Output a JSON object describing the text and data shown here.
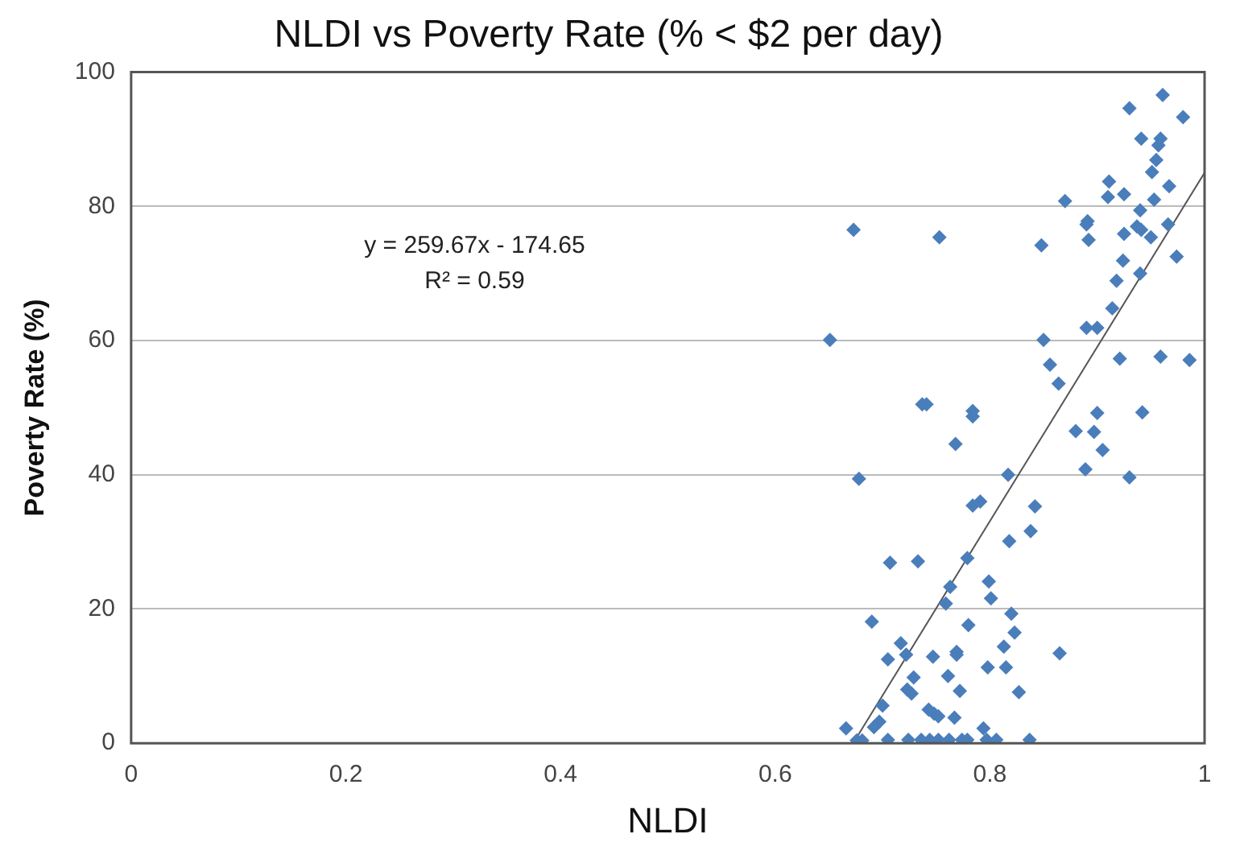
{
  "chart_data": {
    "type": "scatter",
    "title": "NLDI vs Poverty Rate (% < $2 per day)",
    "xlabel": "NLDI",
    "ylabel": "Poverty Rate (%)",
    "annotations": [
      "y = 259.67x - 174.65",
      "R² = 0.59"
    ],
    "xlim": [
      0,
      1
    ],
    "xticks": [
      0,
      0.2,
      0.4,
      0.6,
      0.8,
      1
    ],
    "ylim": [
      0,
      100
    ],
    "yticks": [
      0,
      20,
      40,
      60,
      80,
      100
    ],
    "grid": "y",
    "legend": false,
    "marker": "diamond",
    "series": [
      {
        "color": "#4a7ebb",
        "x": [
          0.961,
          0.93,
          0.98,
          0.941,
          0.959,
          0.957,
          0.955,
          0.951,
          0.911,
          0.967,
          0.91,
          0.925,
          0.953,
          0.87,
          0.94,
          0.891,
          0.89,
          0.673,
          0.753,
          0.937,
          0.941,
          0.966,
          0.925,
          0.95,
          0.892,
          0.848,
          0.974,
          0.924,
          0.918,
          0.94,
          0.914,
          0.89,
          0.9,
          0.651,
          0.85,
          0.856,
          0.921,
          0.959,
          0.986,
          0.864,
          0.737,
          0.741,
          0.784,
          0.784,
          0.9,
          0.942,
          0.768,
          0.88,
          0.897,
          0.905,
          0.889,
          0.93,
          0.678,
          0.817,
          0.784,
          0.791,
          0.842,
          0.838,
          0.818,
          0.707,
          0.733,
          0.779,
          0.799,
          0.763,
          0.801,
          0.759,
          0.82,
          0.69,
          0.78,
          0.823,
          0.717,
          0.813,
          0.722,
          0.705,
          0.747,
          0.769,
          0.769,
          0.865,
          0.798,
          0.815,
          0.729,
          0.761,
          0.723,
          0.727,
          0.772,
          0.827,
          0.7,
          0.743,
          0.748,
          0.752,
          0.697,
          0.692,
          0.767,
          0.666,
          0.794,
          0.676,
          0.681,
          0.705,
          0.724,
          0.736,
          0.744,
          0.752,
          0.762,
          0.774,
          0.779,
          0.797,
          0.806,
          0.837
        ],
        "values": [
          96.6,
          94.6,
          93.3,
          90.1,
          90.1,
          89.1,
          86.9,
          85.1,
          83.7,
          83,
          81.4,
          81.8,
          81,
          80.8,
          79.4,
          77.8,
          77.3,
          76.5,
          75.4,
          77,
          76.5,
          77.3,
          75.9,
          75.4,
          75,
          74.2,
          72.5,
          71.9,
          68.9,
          70,
          64.8,
          61.9,
          61.9,
          60.1,
          60.1,
          56.4,
          57.3,
          57.6,
          57.1,
          53.6,
          50.5,
          50.5,
          49.5,
          48.7,
          49.2,
          49.3,
          44.6,
          46.5,
          46.4,
          43.7,
          40.8,
          39.6,
          39.4,
          40,
          35.4,
          36,
          35.3,
          31.6,
          30.1,
          26.9,
          27.1,
          27.6,
          24.1,
          23.3,
          21.6,
          20.8,
          19.3,
          18.1,
          17.6,
          16.5,
          14.9,
          14.4,
          13.2,
          12.5,
          12.9,
          13.6,
          13.2,
          13.4,
          11.3,
          11.3,
          9.8,
          10,
          8,
          7.4,
          7.8,
          7.6,
          5.6,
          5,
          4.4,
          4,
          3.2,
          2.4,
          3.8,
          2.2,
          2.2,
          0.4,
          0.4,
          0.5,
          0.5,
          0.5,
          0.5,
          0.5,
          0.5,
          0.5,
          0.5,
          0.5,
          0.5,
          0.5
        ]
      },
      {
        "type": "line",
        "color": "#555555",
        "marker": "none",
        "x": [
          0.6726,
          1
        ],
        "values": [
          0,
          85.02
        ]
      }
    ]
  }
}
